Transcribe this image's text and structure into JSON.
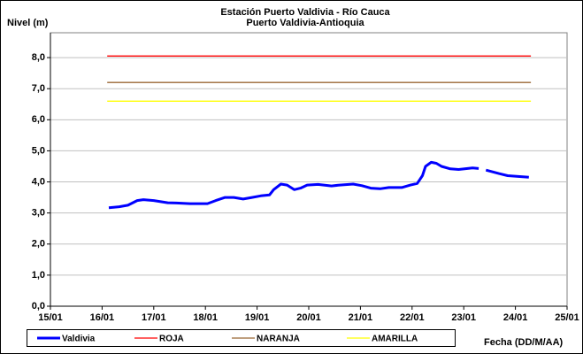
{
  "chart_data": {
    "type": "line",
    "title": "Estación Puerto Valdivia - Río Cauca",
    "subtitle": "Puerto Valdivia-Antioquia",
    "y_label": "Nivel (m)",
    "x_label": "Fecha (DD/M/AA)",
    "xlim": [
      15,
      25
    ],
    "xticks": [
      {
        "value": 15,
        "label": "15/01"
      },
      {
        "value": 16,
        "label": "16/01"
      },
      {
        "value": 17,
        "label": "17/01"
      },
      {
        "value": 18,
        "label": "18/01"
      },
      {
        "value": 19,
        "label": "19/01"
      },
      {
        "value": 20,
        "label": "20/01"
      },
      {
        "value": 21,
        "label": "21/01"
      },
      {
        "value": 22,
        "label": "22/01"
      },
      {
        "value": 23,
        "label": "23/01"
      },
      {
        "value": 24,
        "label": "24/01"
      },
      {
        "value": 25,
        "label": "25/01"
      }
    ],
    "ylim": [
      0,
      8.8
    ],
    "yticks": [
      {
        "value": 0,
        "label": "0,0"
      },
      {
        "value": 1,
        "label": "1,0"
      },
      {
        "value": 2,
        "label": "2,0"
      },
      {
        "value": 3,
        "label": "3,0"
      },
      {
        "value": 4,
        "label": "4,0"
      },
      {
        "value": 5,
        "label": "5,0"
      },
      {
        "value": 6,
        "label": "6,0"
      },
      {
        "value": 7,
        "label": "7,0"
      },
      {
        "value": 8,
        "label": "8,0"
      }
    ],
    "grid": true,
    "legend": "bottom",
    "series": [
      {
        "name": "Valdivia",
        "color": "#0000ff",
        "x": [
          16.13,
          16.33,
          16.5,
          16.68,
          16.8,
          17.0,
          17.27,
          17.44,
          17.7,
          18.04,
          18.2,
          18.38,
          18.55,
          18.73,
          18.9,
          19.07,
          19.24,
          19.32,
          19.46,
          19.58,
          19.72,
          19.84,
          19.97,
          20.18,
          20.44,
          20.6,
          20.86,
          21.03,
          21.2,
          21.38,
          21.55,
          21.8,
          21.97,
          22.1,
          22.2,
          22.26,
          22.37,
          22.47,
          22.57,
          22.74,
          22.9,
          23.17,
          23.29,
          23.36,
          23.43,
          23.68,
          23.85,
          24.26
        ],
        "values": [
          3.17,
          3.2,
          3.25,
          3.4,
          3.43,
          3.4,
          3.33,
          3.32,
          3.3,
          3.3,
          3.4,
          3.5,
          3.5,
          3.45,
          3.5,
          3.55,
          3.58,
          3.75,
          3.93,
          3.9,
          3.75,
          3.8,
          3.9,
          3.92,
          3.87,
          3.9,
          3.93,
          3.88,
          3.8,
          3.78,
          3.82,
          3.82,
          3.9,
          3.95,
          4.2,
          4.5,
          4.63,
          4.6,
          4.5,
          4.42,
          4.4,
          4.45,
          4.43,
          null,
          4.38,
          4.27,
          4.2,
          4.15
        ]
      },
      {
        "name": "ROJA",
        "color": "#ff0000",
        "x": [
          16.1,
          24.3
        ],
        "values": [
          8.05,
          8.05
        ]
      },
      {
        "name": "NARANJA",
        "color": "#996633",
        "x": [
          16.1,
          24.3
        ],
        "values": [
          7.2,
          7.2
        ]
      },
      {
        "name": "AMARILLA",
        "color": "#ffff00",
        "x": [
          16.1,
          24.3
        ],
        "values": [
          6.6,
          6.6
        ]
      }
    ]
  }
}
